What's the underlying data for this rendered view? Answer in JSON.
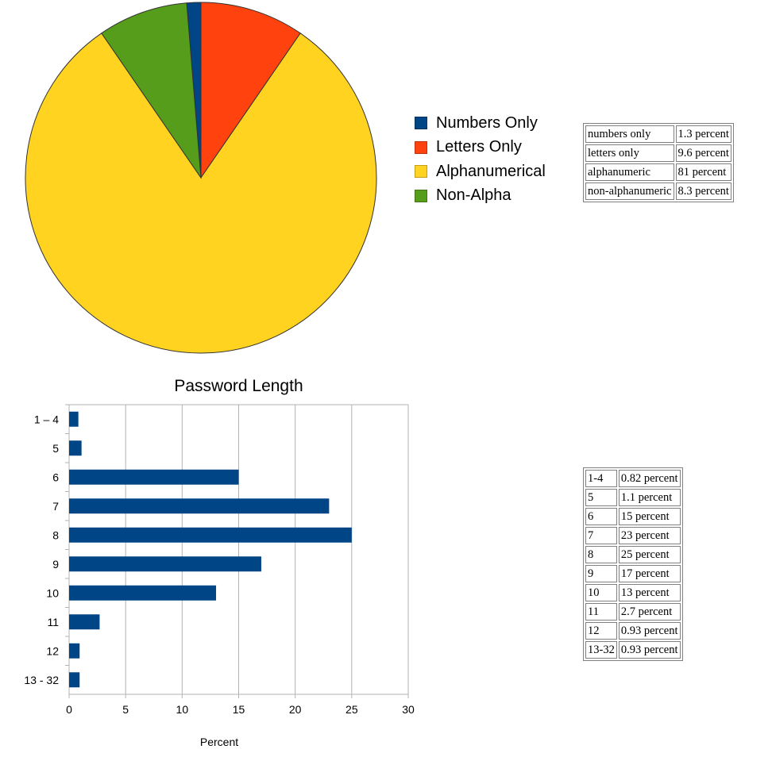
{
  "chart_data": [
    {
      "type": "pie",
      "title": "",
      "legend_position": "right",
      "slices": [
        {
          "label": "Numbers Only",
          "value": 1.3,
          "color": "#004586"
        },
        {
          "label": "Letters Only",
          "value": 9.6,
          "color": "#ff420e"
        },
        {
          "label": "Alphanumerical",
          "value": 81,
          "color": "#ffd320"
        },
        {
          "label": "Non-Alpha",
          "value": 8.3,
          "color": "#579d1c"
        }
      ]
    },
    {
      "type": "bar",
      "orientation": "horizontal",
      "title": "Password Length",
      "xlabel": "Percent",
      "ylabel": "",
      "xlim": [
        0,
        30
      ],
      "xticks": [
        0,
        5,
        10,
        15,
        20,
        25,
        30
      ],
      "grid": true,
      "bar_color": "#004586",
      "categories": [
        "1 – 4",
        "5",
        "6",
        "7",
        "8",
        "9",
        "10",
        "11",
        "12",
        "13 - 32"
      ],
      "values": [
        0.82,
        1.1,
        15,
        23,
        25,
        17,
        13,
        2.7,
        0.93,
        0.93
      ]
    }
  ],
  "pie_table": [
    [
      "numbers only",
      "1.3 percent"
    ],
    [
      "letters only",
      "9.6 percent"
    ],
    [
      "alphanumeric",
      "81 percent"
    ],
    [
      "non-alphanumeric",
      "8.3 percent"
    ]
  ],
  "bar_table": [
    [
      "1-4",
      "0.82 percent"
    ],
    [
      "5",
      "1.1 percent"
    ],
    [
      "6",
      "15 percent"
    ],
    [
      "7",
      "23 percent"
    ],
    [
      "8",
      "25 percent"
    ],
    [
      "9",
      "17 percent"
    ],
    [
      "10",
      "13 percent"
    ],
    [
      "11",
      "2.7 percent"
    ],
    [
      "12",
      "0.93 percent"
    ],
    [
      "13-32",
      "0.93 percent"
    ]
  ]
}
